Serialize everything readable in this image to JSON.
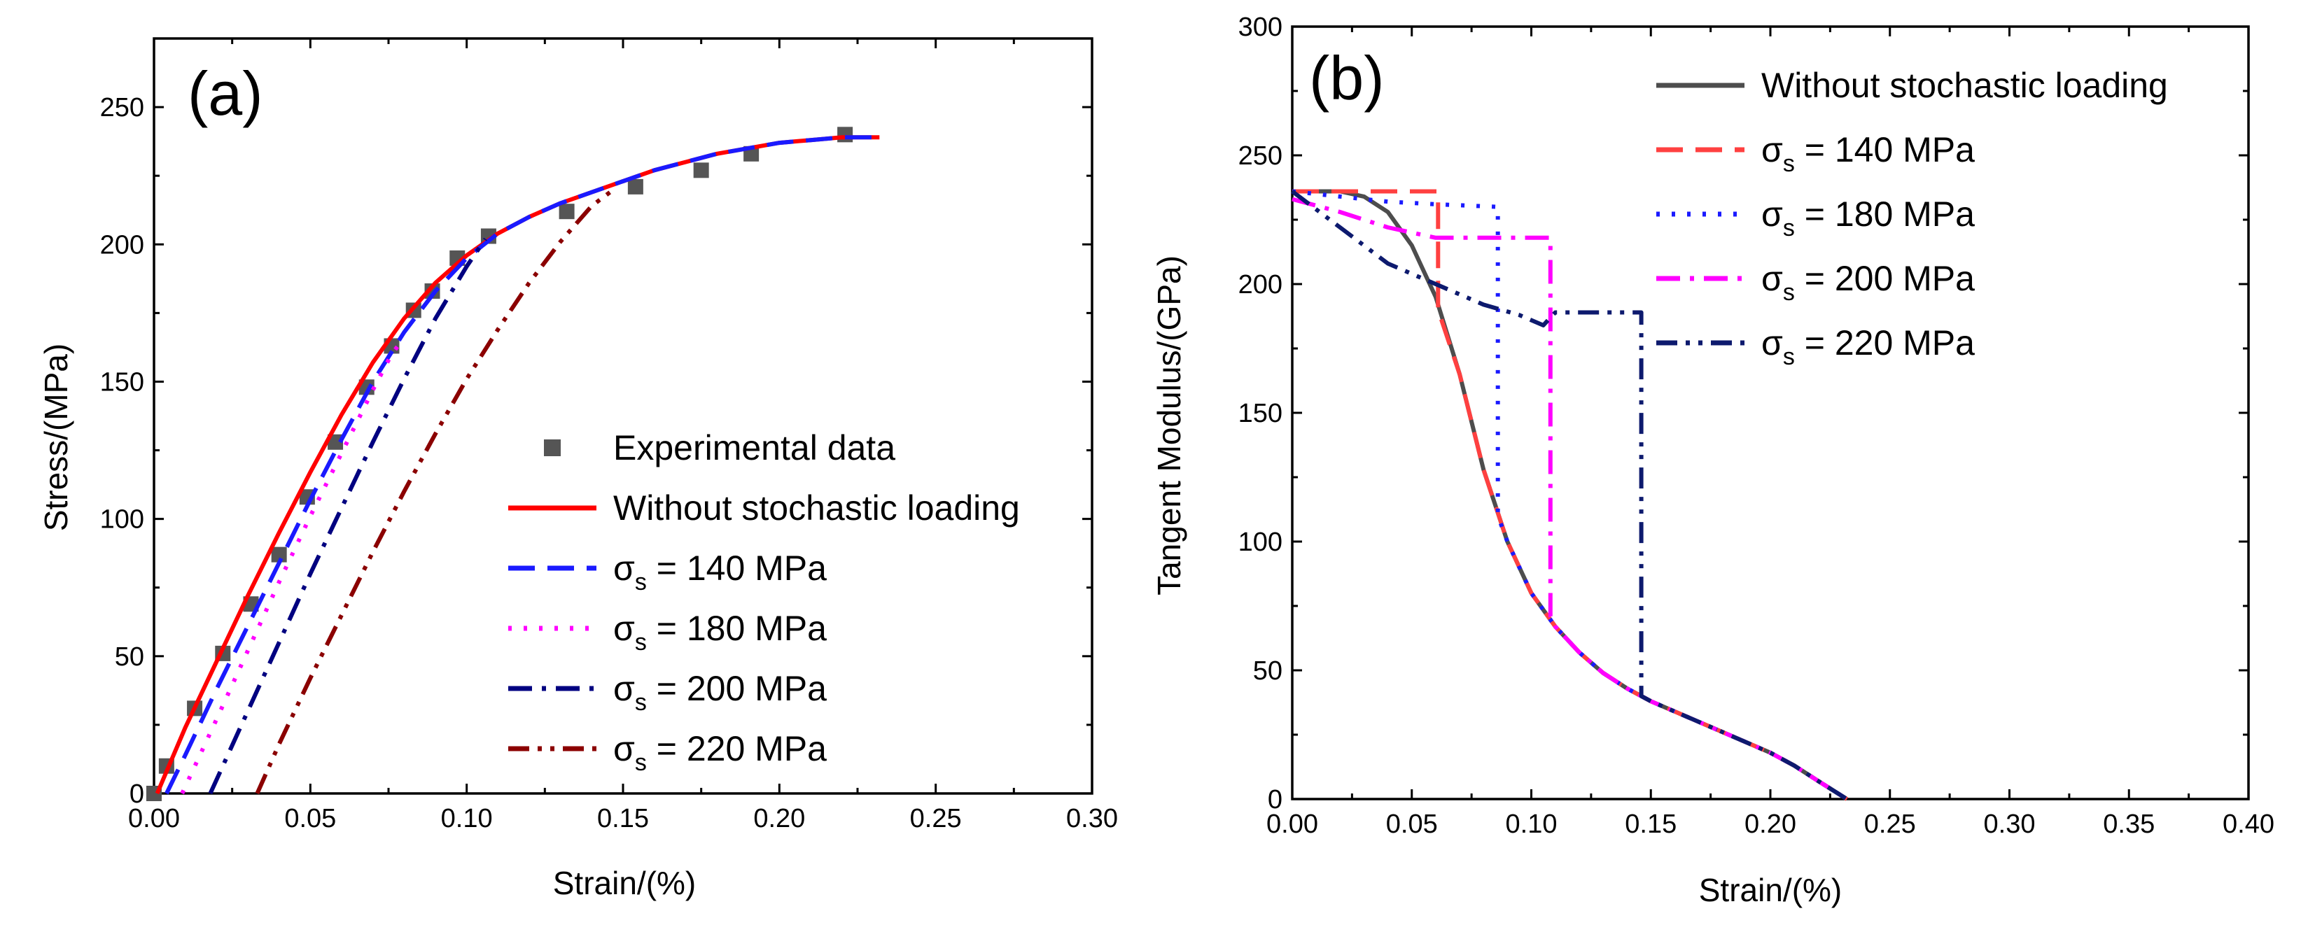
{
  "chart_data": [
    {
      "panel": "(a)",
      "type": "line",
      "xlabel": "Strain/(%)",
      "ylabel": "Stress/(MPa)",
      "xlim": [
        0,
        0.3
      ],
      "ylim": [
        0,
        275
      ],
      "xticks": [
        "0.00",
        "0.05",
        "0.10",
        "0.15",
        "0.20",
        "0.25",
        "0.30"
      ],
      "xtick_values": [
        0,
        0.05,
        0.1,
        0.15,
        0.2,
        0.25,
        0.3
      ],
      "yticks": [
        "0",
        "50",
        "100",
        "150",
        "200",
        "250"
      ],
      "ytick_values": [
        0,
        50,
        100,
        150,
        200,
        250
      ],
      "legend_position": "center-right",
      "series": [
        {
          "name": "Experimental data",
          "legend_label": "Experimental data",
          "style": "square-markers",
          "color": "#555555",
          "x": [
            0,
            0.004,
            0.013,
            0.022,
            0.031,
            0.04,
            0.049,
            0.058,
            0.068,
            0.076,
            0.083,
            0.089,
            0.097,
            0.107,
            0.132,
            0.154,
            0.175,
            0.191,
            0.221
          ],
          "y": [
            0,
            10,
            31,
            51,
            69,
            87,
            108,
            128,
            148,
            163,
            176,
            183,
            195,
            203,
            212,
            221,
            227,
            233,
            240
          ]
        },
        {
          "name": "Without stochastic loading",
          "legend_label": "Without stochastic loading",
          "style": "solid",
          "color": "#ff0000",
          "x": [
            0.001,
            0.01,
            0.02,
            0.03,
            0.04,
            0.05,
            0.06,
            0.07,
            0.08,
            0.09,
            0.1,
            0.11,
            0.12,
            0.13,
            0.14,
            0.15,
            0.16,
            0.17,
            0.18,
            0.19,
            0.2,
            0.21,
            0.22,
            0.232
          ],
          "y": [
            0,
            24,
            48,
            72,
            95,
            117,
            138,
            157,
            173,
            186,
            196,
            204,
            210,
            215,
            219,
            223,
            227,
            230,
            233,
            235,
            237,
            238,
            239,
            239
          ]
        },
        {
          "name": "σs = 140 MPa",
          "legend_label": "σ",
          "legend_sub": "s",
          "legend_rest": " = 140 MPa",
          "style": "dash",
          "color": "#1a1aff",
          "x": [
            0.004,
            0.01,
            0.02,
            0.03,
            0.04,
            0.05,
            0.06,
            0.07,
            0.08,
            0.09,
            0.1,
            0.11,
            0.12,
            0.13,
            0.14,
            0.15,
            0.16,
            0.17,
            0.18,
            0.19,
            0.2,
            0.21,
            0.22,
            0.232
          ],
          "y": [
            0,
            14,
            38,
            61,
            84,
            107,
            129,
            150,
            168,
            183,
            195,
            204,
            210,
            215,
            219,
            223,
            227,
            230,
            233,
            235,
            237,
            238,
            239,
            239
          ]
        },
        {
          "name": "σs = 180 MPa",
          "legend_label": "σ",
          "legend_sub": "s",
          "legend_rest": " = 180 MPa",
          "style": "dot",
          "color": "#ff00ff",
          "x": [
            0.009,
            0.02,
            0.03,
            0.04,
            0.05,
            0.06,
            0.07,
            0.076,
            0.08
          ],
          "y": [
            0,
            27,
            52,
            77,
            101,
            124,
            147,
            160,
            166
          ]
        },
        {
          "name": "σs = 200 MPa",
          "legend_label": "σ",
          "legend_sub": "s",
          "legend_rest": " = 200 MPa",
          "style": "dashdot",
          "color": "#000080",
          "x": [
            0.018,
            0.03,
            0.04,
            0.05,
            0.06,
            0.07,
            0.08,
            0.09,
            0.1,
            0.106
          ],
          "y": [
            0,
            30,
            55,
            80,
            104,
            128,
            151,
            173,
            192,
            202
          ]
        },
        {
          "name": "σs = 220 MPa",
          "legend_label": "σ",
          "legend_sub": "s",
          "legend_rest": " = 220 MPa",
          "style": "dashdotdot",
          "color": "#8b0000",
          "x": [
            0.033,
            0.04,
            0.05,
            0.06,
            0.07,
            0.08,
            0.09,
            0.1,
            0.11,
            0.12,
            0.13,
            0.14,
            0.147
          ],
          "y": [
            0,
            18,
            42,
            65,
            88,
            110,
            131,
            151,
            169,
            186,
            201,
            214,
            220
          ]
        }
      ]
    },
    {
      "panel": "(b)",
      "type": "line",
      "xlabel": "Strain/(%)",
      "ylabel": "Tangent Modulus/(GPa)",
      "xlim": [
        0,
        0.4
      ],
      "ylim": [
        0,
        300
      ],
      "xticks": [
        "0.00",
        "0.05",
        "0.10",
        "0.15",
        "0.20",
        "0.25",
        "0.30",
        "0.35",
        "0.40"
      ],
      "xtick_values": [
        0,
        0.05,
        0.1,
        0.15,
        0.2,
        0.25,
        0.3,
        0.35,
        0.4
      ],
      "yticks": [
        "0",
        "50",
        "100",
        "150",
        "200",
        "250",
        "300"
      ],
      "ytick_values": [
        0,
        50,
        100,
        150,
        200,
        250,
        300
      ],
      "legend_position": "top-right",
      "series": [
        {
          "name": "Without stochastic loading",
          "legend_label": "Without stochastic loading",
          "style": "solid",
          "color": "#4d4d4d",
          "x": [
            0,
            0.02,
            0.03,
            0.04,
            0.05,
            0.06,
            0.07,
            0.08,
            0.09,
            0.1,
            0.11,
            0.12,
            0.13,
            0.14,
            0.15,
            0.16,
            0.17,
            0.18,
            0.19,
            0.2,
            0.21,
            0.22,
            0.232
          ],
          "y": [
            236,
            236,
            234,
            228,
            215,
            195,
            165,
            128,
            100,
            80,
            67,
            57,
            49,
            43,
            38,
            34,
            30,
            26,
            22,
            18,
            13,
            7,
            0
          ]
        },
        {
          "name": "σs = 140 MPa",
          "legend_label": "σ",
          "legend_sub": "s",
          "legend_rest": " = 140 MPa",
          "style": "dash",
          "color": "#ff4040",
          "x": [
            0,
            0.061,
            0.061,
            0.07,
            0.08,
            0.09,
            0.1,
            0.11,
            0.12,
            0.13,
            0.14,
            0.15,
            0.16,
            0.17,
            0.18,
            0.19,
            0.2,
            0.21,
            0.22,
            0.232
          ],
          "y": [
            236,
            236,
            190,
            165,
            128,
            100,
            80,
            67,
            57,
            49,
            43,
            38,
            34,
            30,
            26,
            22,
            18,
            13,
            7,
            0
          ]
        },
        {
          "name": "σs = 180 MPa",
          "legend_label": "σ",
          "legend_sub": "s",
          "legend_rest": " = 180 MPa",
          "style": "dot",
          "color": "#1a1aff",
          "x": [
            0,
            0.02,
            0.04,
            0.06,
            0.086,
            0.086,
            0.09,
            0.1,
            0.11,
            0.12,
            0.13,
            0.14,
            0.15,
            0.16,
            0.17,
            0.18,
            0.19,
            0.2,
            0.21,
            0.22,
            0.232
          ],
          "y": [
            236,
            234,
            232,
            231,
            230,
            110,
            100,
            80,
            67,
            57,
            49,
            43,
            38,
            34,
            30,
            26,
            22,
            18,
            13,
            7,
            0
          ]
        },
        {
          "name": "σs = 200 MPa",
          "legend_label": "σ",
          "legend_sub": "s",
          "legend_rest": " = 200 MPa",
          "style": "dashdot",
          "color": "#ff00ff",
          "x": [
            0,
            0.02,
            0.04,
            0.06,
            0.08,
            0.108,
            0.108,
            0.11,
            0.12,
            0.13,
            0.14,
            0.15,
            0.16,
            0.17,
            0.18,
            0.19,
            0.2,
            0.21,
            0.22,
            0.232
          ],
          "y": [
            233,
            228,
            222,
            218,
            218,
            218,
            71,
            67,
            57,
            49,
            43,
            38,
            34,
            30,
            26,
            22,
            18,
            13,
            7,
            0
          ]
        },
        {
          "name": "σs = 220 MPa",
          "legend_label": "σ",
          "legend_sub": "s",
          "legend_rest": " = 220 MPa",
          "style": "dashdotdot",
          "color": "#0d1a6e",
          "x": [
            0,
            0.02,
            0.04,
            0.06,
            0.08,
            0.095,
            0.105,
            0.11,
            0.13,
            0.146,
            0.146,
            0.15,
            0.16,
            0.17,
            0.18,
            0.19,
            0.2,
            0.21,
            0.22,
            0.232
          ],
          "y": [
            236,
            222,
            208,
            200,
            192,
            188,
            184,
            189,
            189,
            189,
            40,
            38,
            34,
            30,
            26,
            22,
            18,
            13,
            7,
            0
          ]
        }
      ]
    }
  ]
}
